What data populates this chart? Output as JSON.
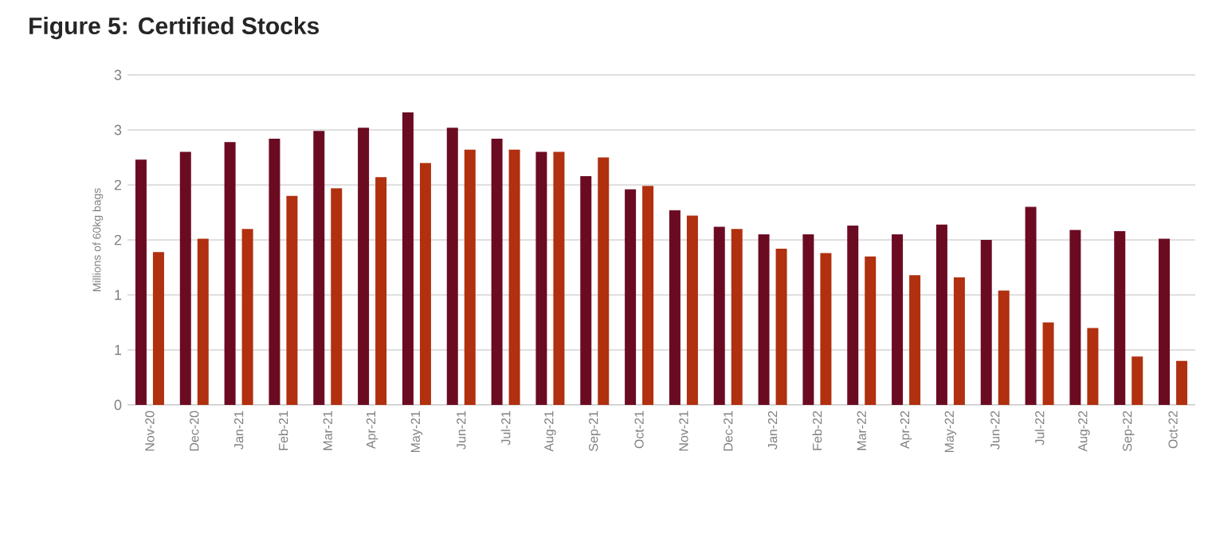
{
  "chart_data": {
    "type": "bar",
    "title": "Figure 5: Certified Stocks",
    "ylabel": "Millions of 60kg bags",
    "categories": [
      "Nov-20",
      "Dec-20",
      "Jan-21",
      "Feb-21",
      "Mar-21",
      "Apr-21",
      "May-21",
      "Jun-21",
      "Jul-21",
      "Aug-21",
      "Sep-21",
      "Oct-21",
      "Nov-21",
      "Dec-21",
      "Jan-22",
      "Feb-22",
      "Mar-22",
      "Apr-22",
      "May-22",
      "Jun-22",
      "Jul-22",
      "Aug-22",
      "Sep-22",
      "Oct-22"
    ],
    "series": [
      {
        "color": "#6b0b22",
        "values": [
          2.23,
          2.3,
          2.39,
          2.42,
          2.49,
          2.52,
          2.66,
          2.52,
          2.42,
          2.3,
          2.08,
          1.96,
          1.77,
          1.62,
          1.55,
          1.55,
          1.63,
          1.55,
          1.64,
          1.5,
          1.8,
          1.59,
          1.58,
          1.51
        ]
      },
      {
        "color": "#b0300f",
        "values": [
          1.39,
          1.51,
          1.6,
          1.9,
          1.97,
          2.07,
          2.2,
          2.32,
          2.32,
          2.3,
          2.25,
          1.99,
          1.72,
          1.6,
          1.42,
          1.38,
          1.35,
          1.18,
          1.16,
          1.04,
          0.75,
          0.7,
          0.44,
          0.4
        ]
      }
    ],
    "ylim": [
      0,
      3
    ],
    "yticks": [
      0,
      {
        "value": 0.5,
        "label": "1"
      },
      1,
      {
        "value": 1.5,
        "label": "2"
      },
      2,
      {
        "value": 2.5,
        "label": "3"
      },
      3
    ],
    "grid": "y"
  }
}
